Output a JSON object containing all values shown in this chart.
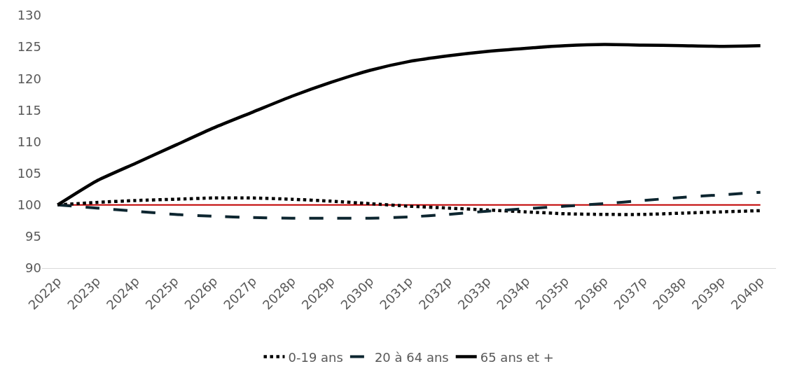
{
  "chart_data": {
    "type": "line",
    "categories": [
      "2022p",
      "2023p",
      "2024p",
      "2025p",
      "2026p",
      "2027p",
      "2028p",
      "2029p",
      "2030p",
      "2031p",
      "2032p",
      "2033p",
      "2034p",
      "2035p",
      "2036p",
      "2037p",
      "2038p",
      "2039p",
      "2040p"
    ],
    "series": [
      {
        "name": "0-19 ans",
        "color": "#000000",
        "line_style": "dotted",
        "values": [
          100,
          100.4,
          100.7,
          100.9,
          101.1,
          101.1,
          100.9,
          100.6,
          100.2,
          99.8,
          99.5,
          99.2,
          98.9,
          98.6,
          98.5,
          98.5,
          98.7,
          98.9,
          99.1
        ]
      },
      {
        "name": "20 à 64 ans",
        "color": "#0d2630",
        "line_style": "dashed",
        "values": [
          100,
          99.5,
          99.0,
          98.5,
          98.2,
          98.0,
          97.9,
          97.9,
          97.9,
          98.1,
          98.5,
          99.0,
          99.4,
          99.8,
          100.2,
          100.7,
          101.2,
          101.6,
          102.0
        ]
      },
      {
        "name": "65 ans et +",
        "color": "#000000",
        "line_style": "solid",
        "values": [
          100,
          103.8,
          106.6,
          109.4,
          112.2,
          114.7,
          117.2,
          119.4,
          121.3,
          122.7,
          123.6,
          124.3,
          124.8,
          125.2,
          125.4,
          125.3,
          125.2,
          125.1,
          125.2
        ]
      }
    ],
    "ylim": [
      90,
      130
    ],
    "yticks": [
      90,
      95,
      100,
      105,
      110,
      115,
      120,
      125,
      130
    ],
    "ref_lines": [
      {
        "axis": "y",
        "value": 100,
        "color": "#c00000"
      }
    ],
    "grid": false,
    "legend": "bottom",
    "marker": "none"
  }
}
